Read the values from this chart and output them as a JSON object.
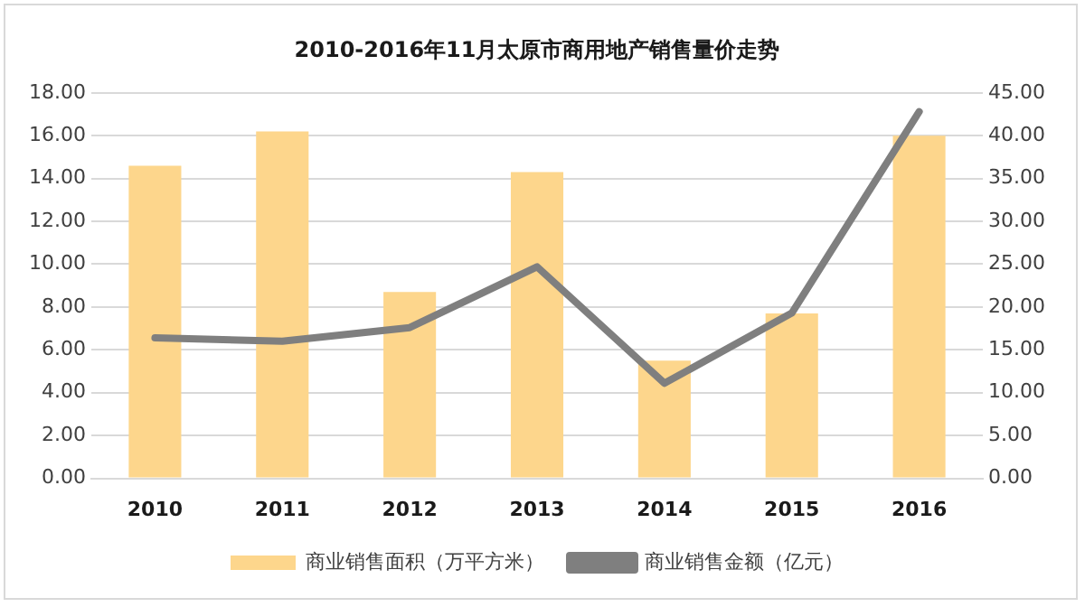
{
  "chart_data": {
    "type": "bar",
    "title": "2010-2016年11月太原市商用地产销售量价走势",
    "categories": [
      "2010",
      "2011",
      "2012",
      "2013",
      "2014",
      "2015",
      "2016"
    ],
    "series": [
      {
        "name": "商业销售面积（万平方米）",
        "color": "#fdd68c",
        "values": [
          14.6,
          16.2,
          8.7,
          14.3,
          5.5,
          7.7,
          16.0
        ]
      },
      {
        "name": "商业销售金额（亿元）",
        "type": "line",
        "axis": "y2",
        "color": "#7f7f7f",
        "values": [
          16.4,
          16.0,
          17.6,
          24.7,
          11.1,
          19.3,
          42.8
        ]
      }
    ],
    "ylim": [
      0,
      18
    ],
    "yticks": [
      {
        "value": 0,
        "label": "0.00"
      },
      {
        "value": 2,
        "label": "2.00"
      },
      {
        "value": 4,
        "label": "4.00"
      },
      {
        "value": 6,
        "label": "6.00"
      },
      {
        "value": 8,
        "label": "8.00"
      },
      {
        "value": 10,
        "label": "10.00"
      },
      {
        "value": 12,
        "label": "12.00"
      },
      {
        "value": 14,
        "label": "14.00"
      },
      {
        "value": 16,
        "label": "16.00"
      },
      {
        "value": 18,
        "label": "18.00"
      }
    ],
    "y2lim": [
      0,
      45
    ],
    "y2ticks": [
      {
        "value": 0,
        "label": "0.00"
      },
      {
        "value": 5,
        "label": "5.00"
      },
      {
        "value": 10,
        "label": "10.00"
      },
      {
        "value": 15,
        "label": "15.00"
      },
      {
        "value": 20,
        "label": "20.00"
      },
      {
        "value": 25,
        "label": "25.00"
      },
      {
        "value": 30,
        "label": "30.00"
      },
      {
        "value": 35,
        "label": "35.00"
      },
      {
        "value": 40,
        "label": "40.00"
      },
      {
        "value": 45,
        "label": "45.00"
      }
    ],
    "grid": "y",
    "legend": "bottom",
    "marker": "none"
  }
}
